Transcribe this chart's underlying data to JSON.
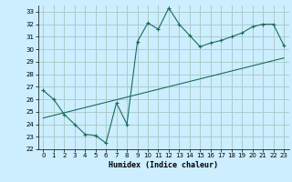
{
  "xlabel": "Humidex (Indice chaleur)",
  "background_color": "#cceeff",
  "grid_color": "#aacccc",
  "line_color": "#1a6b5a",
  "xlim": [
    -0.5,
    23.5
  ],
  "ylim": [
    22,
    33.5
  ],
  "xticks": [
    0,
    1,
    2,
    3,
    4,
    5,
    6,
    7,
    8,
    9,
    10,
    11,
    12,
    13,
    14,
    15,
    16,
    17,
    18,
    19,
    20,
    21,
    22,
    23
  ],
  "yticks": [
    22,
    23,
    24,
    25,
    26,
    27,
    28,
    29,
    30,
    31,
    32,
    33
  ],
  "line1_x": [
    0,
    1,
    2,
    3,
    4,
    5,
    6,
    7,
    8,
    9,
    10,
    11,
    12,
    13,
    14,
    15,
    16,
    17,
    18,
    19,
    20,
    21,
    22,
    23
  ],
  "line1_y": [
    26.7,
    26.0,
    24.8,
    24.0,
    23.2,
    23.1,
    22.5,
    25.7,
    24.0,
    30.6,
    32.1,
    31.6,
    33.3,
    32.0,
    31.1,
    30.2,
    30.5,
    30.7,
    31.0,
    31.3,
    31.8,
    32.0,
    32.0,
    30.3
  ],
  "line2_x": [
    0,
    23
  ],
  "line2_y": [
    24.5,
    29.3
  ]
}
